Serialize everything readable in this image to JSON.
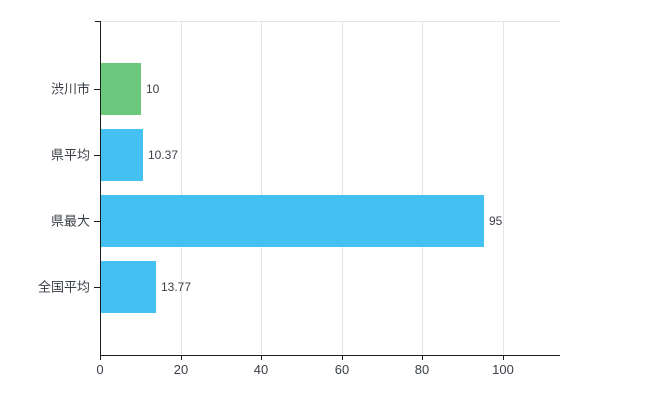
{
  "chart_data": {
    "type": "bar",
    "orientation": "horizontal",
    "title": "",
    "categories": [
      "渋川市",
      "県平均",
      "県最大",
      "全国平均"
    ],
    "values": [
      10,
      10.37,
      95,
      13.77
    ],
    "value_labels": [
      "10",
      "10.37",
      "95",
      "13.77"
    ],
    "series": [
      {
        "name": "",
        "values": [
          10,
          10.37,
          95,
          13.77
        ]
      }
    ],
    "x_ticks": [
      0,
      20,
      40,
      60,
      80,
      100
    ],
    "x_tick_labels": [
      "0",
      "20",
      "40",
      "60",
      "80",
      "100"
    ],
    "xlim": [
      0,
      114
    ],
    "ylabel": "",
    "xlabel": "",
    "grid": true,
    "legend": false,
    "bar_colors": [
      "#6cc87e",
      "#44c1f0",
      "#44c1f0",
      "#44c1f0"
    ],
    "colors": {
      "green_bar": "#6cc87e",
      "blue_bar": "#44c1f0",
      "gridline": "#e4e4e4",
      "axis": "#1c1c1c",
      "text": "#3a3f46"
    }
  }
}
